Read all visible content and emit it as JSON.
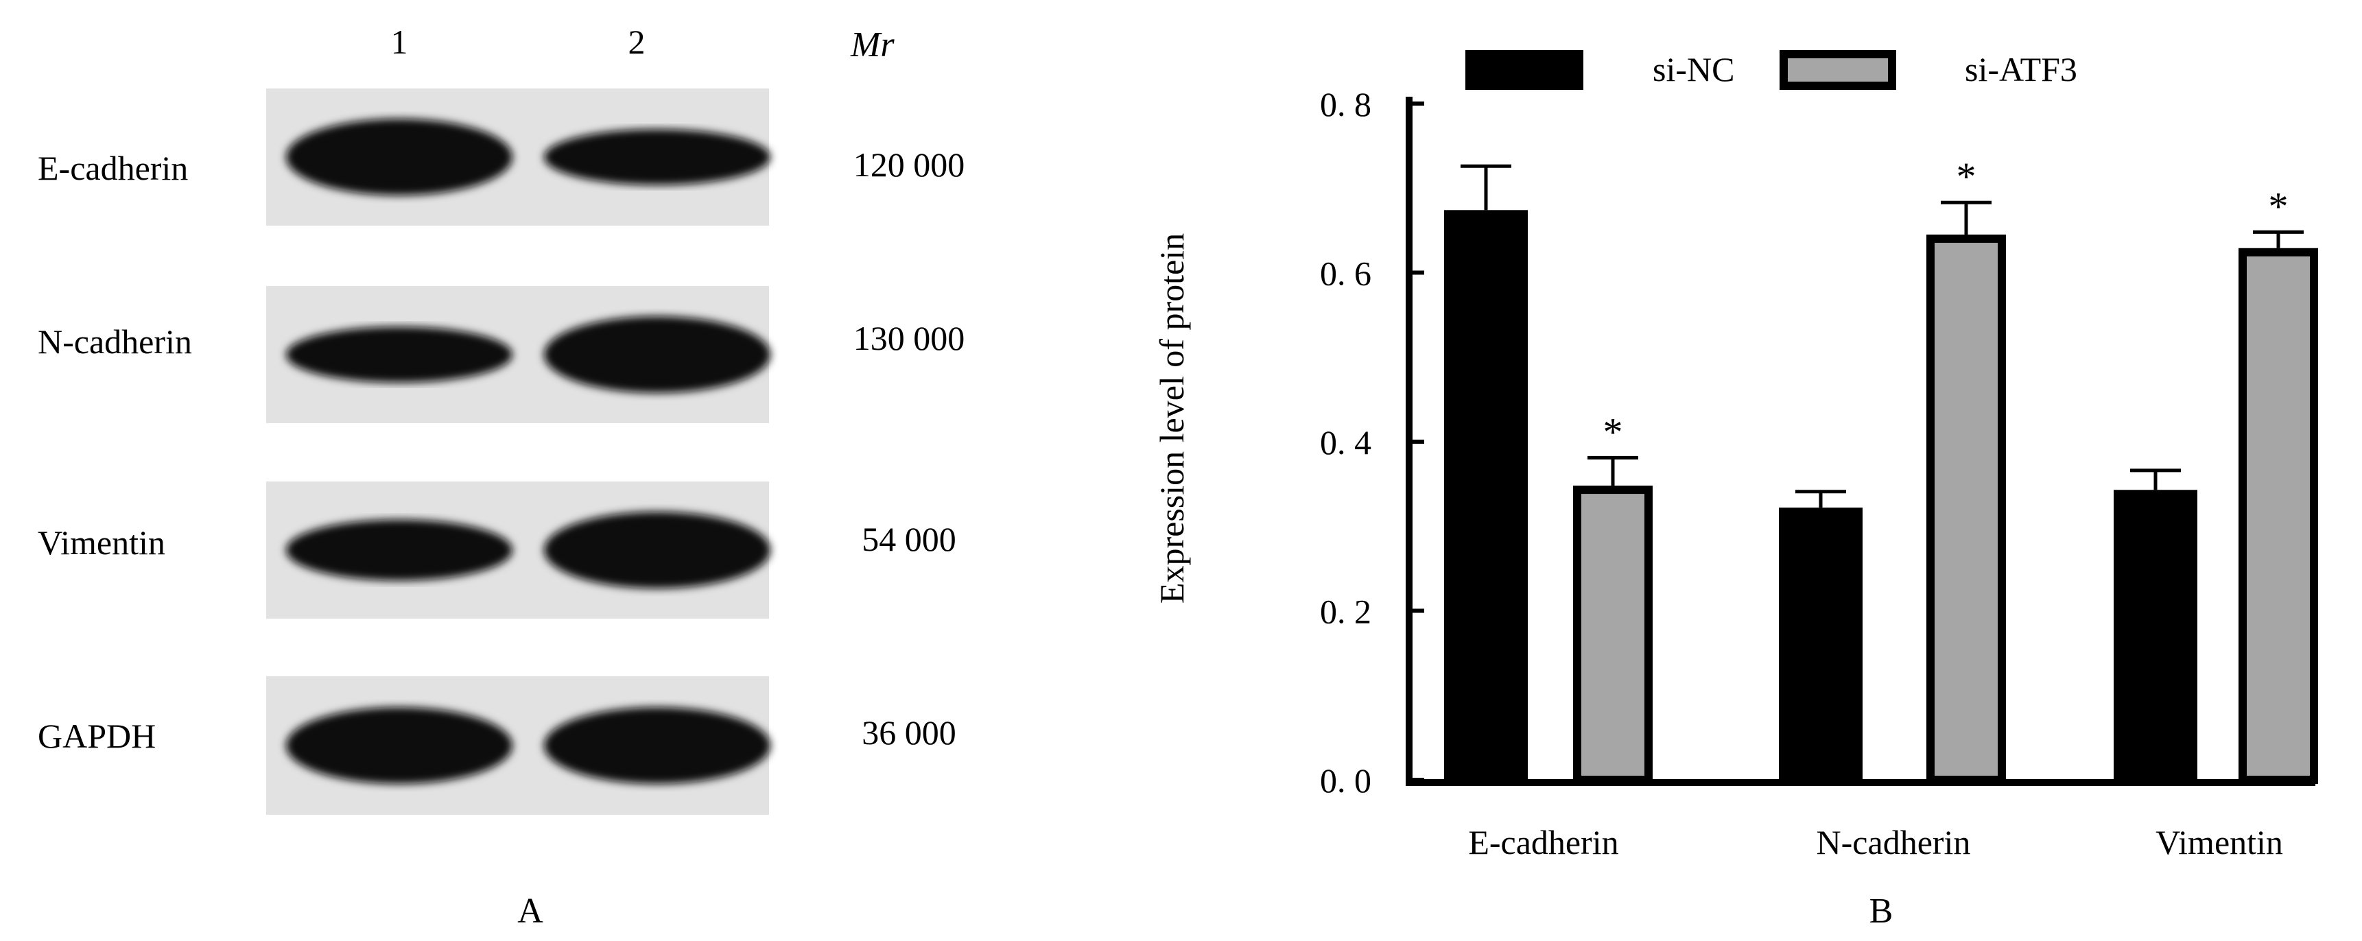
{
  "panel_a": {
    "label": "A",
    "lanes": [
      "1",
      "2"
    ],
    "mr_header": "Mr",
    "rows": [
      {
        "protein": "E-cadherin",
        "mr": "120 000",
        "band_intensity": [
          1.0,
          0.6
        ]
      },
      {
        "protein": "N-cadherin",
        "mr": "130 000",
        "band_intensity": [
          0.6,
          1.0
        ]
      },
      {
        "protein": "Vimentin",
        "mr": "54 000",
        "band_intensity": [
          0.7,
          1.0
        ]
      },
      {
        "protein": "GAPDH",
        "mr": "36 000",
        "band_intensity": [
          1.0,
          1.0
        ]
      }
    ]
  },
  "chart_data": {
    "type": "bar",
    "panel_label": "B",
    "categories": [
      "E-cadherin",
      "N-cadherin",
      "Vimentin"
    ],
    "series": [
      {
        "name": "si-NC",
        "color": "#000000",
        "values": [
          0.674,
          0.322,
          0.343
        ],
        "error": [
          0.052,
          0.019,
          0.023
        ],
        "significant": [
          false,
          false,
          false
        ]
      },
      {
        "name": "si-ATF3",
        "color": "#a6a6a6",
        "values": [
          0.348,
          0.645,
          0.629
        ],
        "error": [
          0.033,
          0.038,
          0.019
        ],
        "significant": [
          true,
          true,
          true
        ]
      }
    ],
    "significance_marker": "*",
    "xlabel": "",
    "ylabel": "Expression level of protein",
    "ylim": [
      0,
      0.8
    ],
    "yticks": [
      "0. 0",
      "0. 2",
      "0. 4",
      "0. 6",
      "0. 8"
    ],
    "grid": false,
    "legend": "top"
  }
}
